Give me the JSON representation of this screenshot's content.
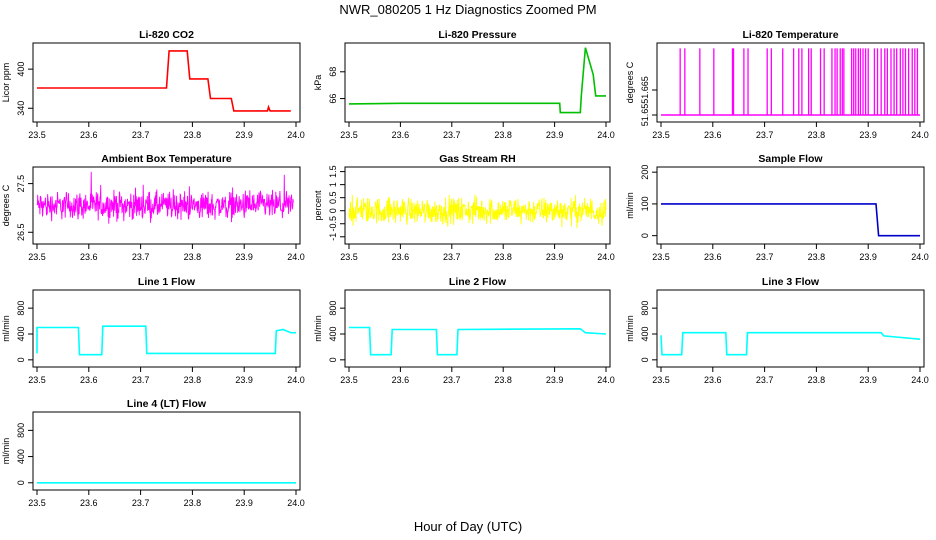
{
  "figure": {
    "title": "NWR_080205  1 Hz Diagnostics Zoomed PM",
    "xlabel": "Hour of Day (UTC)"
  },
  "chart_data": [
    {
      "type": "line",
      "title": "Li-820 CO2",
      "xlabel": "",
      "ylabel": "Licor ppm",
      "color": "#ff0000",
      "xlim": [
        23.5,
        24.0
      ],
      "ylim": [
        322,
        437
      ],
      "xticks": [
        23.5,
        23.6,
        23.7,
        23.8,
        23.9,
        24.0
      ],
      "yticks": [
        340,
        400
      ],
      "segments": [
        [
          23.5,
          371
        ],
        [
          23.75,
          371
        ],
        [
          23.755,
          428
        ],
        [
          23.79,
          428
        ],
        [
          23.795,
          385
        ],
        [
          23.83,
          385
        ],
        [
          23.835,
          355
        ],
        [
          23.875,
          355
        ],
        [
          23.88,
          336
        ],
        [
          23.945,
          336
        ],
        [
          23.947,
          342
        ],
        [
          23.95,
          336
        ],
        [
          23.99,
          336
        ]
      ]
    },
    {
      "type": "line",
      "title": "Li-820 Pressure",
      "xlabel": "",
      "ylabel": "kPa",
      "color": "#00c000",
      "xlim": [
        23.5,
        24.0
      ],
      "ylim": [
        64.4,
        70.0
      ],
      "xticks": [
        23.5,
        23.6,
        23.7,
        23.8,
        23.9,
        24.0
      ],
      "yticks": [
        66,
        68
      ],
      "segments": [
        [
          23.5,
          65.6
        ],
        [
          23.6,
          65.65
        ],
        [
          23.75,
          65.65
        ],
        [
          23.91,
          65.65
        ],
        [
          23.911,
          64.95
        ],
        [
          23.95,
          64.95
        ],
        [
          23.952,
          66.2
        ],
        [
          23.96,
          69.8
        ],
        [
          23.975,
          67.8
        ],
        [
          23.98,
          66.2
        ],
        [
          24.0,
          66.2
        ]
      ]
    },
    {
      "type": "line",
      "title": "Li-820 Temperature",
      "xlabel": "",
      "ylabel": "degrees C",
      "color": "#ff00ff",
      "xlim": [
        23.5,
        24.0
      ],
      "ylim": [
        51.647,
        51.692
      ],
      "xticks": [
        23.5,
        23.6,
        23.7,
        23.8,
        23.9,
        24.0
      ],
      "yticks": [
        51.65,
        51.665
      ],
      "low": 51.65,
      "high": 51.69,
      "spikes": [
        23.537,
        23.546,
        23.575,
        23.602,
        23.638,
        23.64,
        23.66,
        23.668,
        23.705,
        23.713,
        23.735,
        23.756,
        23.766,
        23.772,
        23.785,
        23.79,
        23.808,
        23.815,
        23.83,
        23.836,
        23.84,
        23.846,
        23.85,
        23.853,
        23.868,
        23.872,
        23.876,
        23.881,
        23.885,
        23.89,
        23.895,
        23.9,
        23.912,
        23.918,
        23.925,
        23.932,
        23.937,
        23.944,
        23.95,
        23.955,
        23.962,
        23.967,
        23.972,
        23.978,
        23.985,
        23.99,
        23.995
      ]
    },
    {
      "type": "line",
      "title": "Ambient Box Temperature",
      "xlabel": "",
      "ylabel": "degrees C",
      "color": "#ff00ff",
      "xlim": [
        23.5,
        24.0
      ],
      "ylim": [
        26.3,
        27.8
      ],
      "xticks": [
        23.5,
        23.6,
        23.7,
        23.8,
        23.9,
        24.0
      ],
      "yticks": [
        26.5,
        27.5
      ],
      "noise": {
        "mean": 27.05,
        "amp": 0.42,
        "x0": 23.5,
        "x1": 23.995
      }
    },
    {
      "type": "line",
      "title": "Gas Stream RH",
      "xlabel": "",
      "ylabel": "percent",
      "color": "#ffff00",
      "xlim": [
        23.5,
        24.0
      ],
      "ylim": [
        -1.2,
        1.6
      ],
      "xticks": [
        23.5,
        23.6,
        23.7,
        23.8,
        23.9,
        24.0
      ],
      "yticks": [
        -1.0,
        -0.5,
        0.0,
        0.5,
        1.0,
        1.5
      ],
      "noise": {
        "mean": 0.0,
        "amp": 0.75,
        "x0": 23.5,
        "x1": 24.0
      }
    },
    {
      "type": "line",
      "title": "Sample Flow",
      "xlabel": "",
      "ylabel": "ml/min",
      "color": "#0000cc",
      "xlim": [
        23.5,
        24.0
      ],
      "ylim": [
        -20,
        210
      ],
      "xticks": [
        23.5,
        23.6,
        23.7,
        23.8,
        23.9,
        24.0
      ],
      "yticks": [
        0,
        100,
        200
      ],
      "segments": [
        [
          23.5,
          100
        ],
        [
          23.915,
          100
        ],
        [
          23.92,
          0
        ],
        [
          24.0,
          0
        ]
      ]
    },
    {
      "type": "line",
      "title": "Line 1 Flow",
      "xlabel": "",
      "ylabel": "ml/min",
      "color": "#00ffff",
      "xlim": [
        23.5,
        24.0
      ],
      "ylim": [
        -80,
        1050
      ],
      "xticks": [
        23.5,
        23.6,
        23.7,
        23.8,
        23.9,
        24.0
      ],
      "yticks": [
        0,
        400,
        800
      ],
      "segments": [
        [
          23.5,
          100
        ],
        [
          23.5,
          500
        ],
        [
          23.58,
          500
        ],
        [
          23.582,
          80
        ],
        [
          23.625,
          80
        ],
        [
          23.627,
          520
        ],
        [
          23.71,
          520
        ],
        [
          23.712,
          100
        ],
        [
          23.96,
          100
        ],
        [
          23.962,
          450
        ],
        [
          23.975,
          470
        ],
        [
          23.99,
          420
        ],
        [
          24.0,
          420
        ]
      ]
    },
    {
      "type": "line",
      "title": "Line 2 Flow",
      "xlabel": "",
      "ylabel": "ml/min",
      "color": "#00ffff",
      "xlim": [
        23.5,
        24.0
      ],
      "ylim": [
        -80,
        1050
      ],
      "xticks": [
        23.5,
        23.6,
        23.7,
        23.8,
        23.9,
        24.0
      ],
      "yticks": [
        0,
        400,
        800
      ],
      "segments": [
        [
          23.5,
          500
        ],
        [
          23.54,
          500
        ],
        [
          23.542,
          80
        ],
        [
          23.582,
          80
        ],
        [
          23.584,
          470
        ],
        [
          23.67,
          470
        ],
        [
          23.672,
          80
        ],
        [
          23.71,
          80
        ],
        [
          23.712,
          470
        ],
        [
          23.95,
          480
        ],
        [
          23.96,
          420
        ],
        [
          24.0,
          400
        ]
      ]
    },
    {
      "type": "line",
      "title": "Line 3 Flow",
      "xlabel": "",
      "ylabel": "ml/min",
      "color": "#00ffff",
      "xlim": [
        23.5,
        24.0
      ],
      "ylim": [
        -80,
        1050
      ],
      "xticks": [
        23.5,
        23.6,
        23.7,
        23.8,
        23.9,
        24.0
      ],
      "yticks": [
        0,
        400,
        800
      ],
      "segments": [
        [
          23.5,
          380
        ],
        [
          23.502,
          80
        ],
        [
          23.54,
          80
        ],
        [
          23.542,
          420
        ],
        [
          23.625,
          420
        ],
        [
          23.627,
          80
        ],
        [
          23.665,
          80
        ],
        [
          23.667,
          420
        ],
        [
          23.925,
          420
        ],
        [
          23.93,
          370
        ],
        [
          24.0,
          320
        ]
      ]
    },
    {
      "type": "line",
      "title": "Line 4 (LT) Flow",
      "xlabel": "",
      "ylabel": "ml/min",
      "color": "#00ffff",
      "xlim": [
        23.5,
        24.0
      ],
      "ylim": [
        -80,
        1050
      ],
      "xticks": [
        23.5,
        23.6,
        23.7,
        23.8,
        23.9,
        24.0
      ],
      "yticks": [
        0,
        400,
        800
      ],
      "segments": [
        [
          23.5,
          0
        ],
        [
          24.0,
          0
        ]
      ]
    }
  ]
}
